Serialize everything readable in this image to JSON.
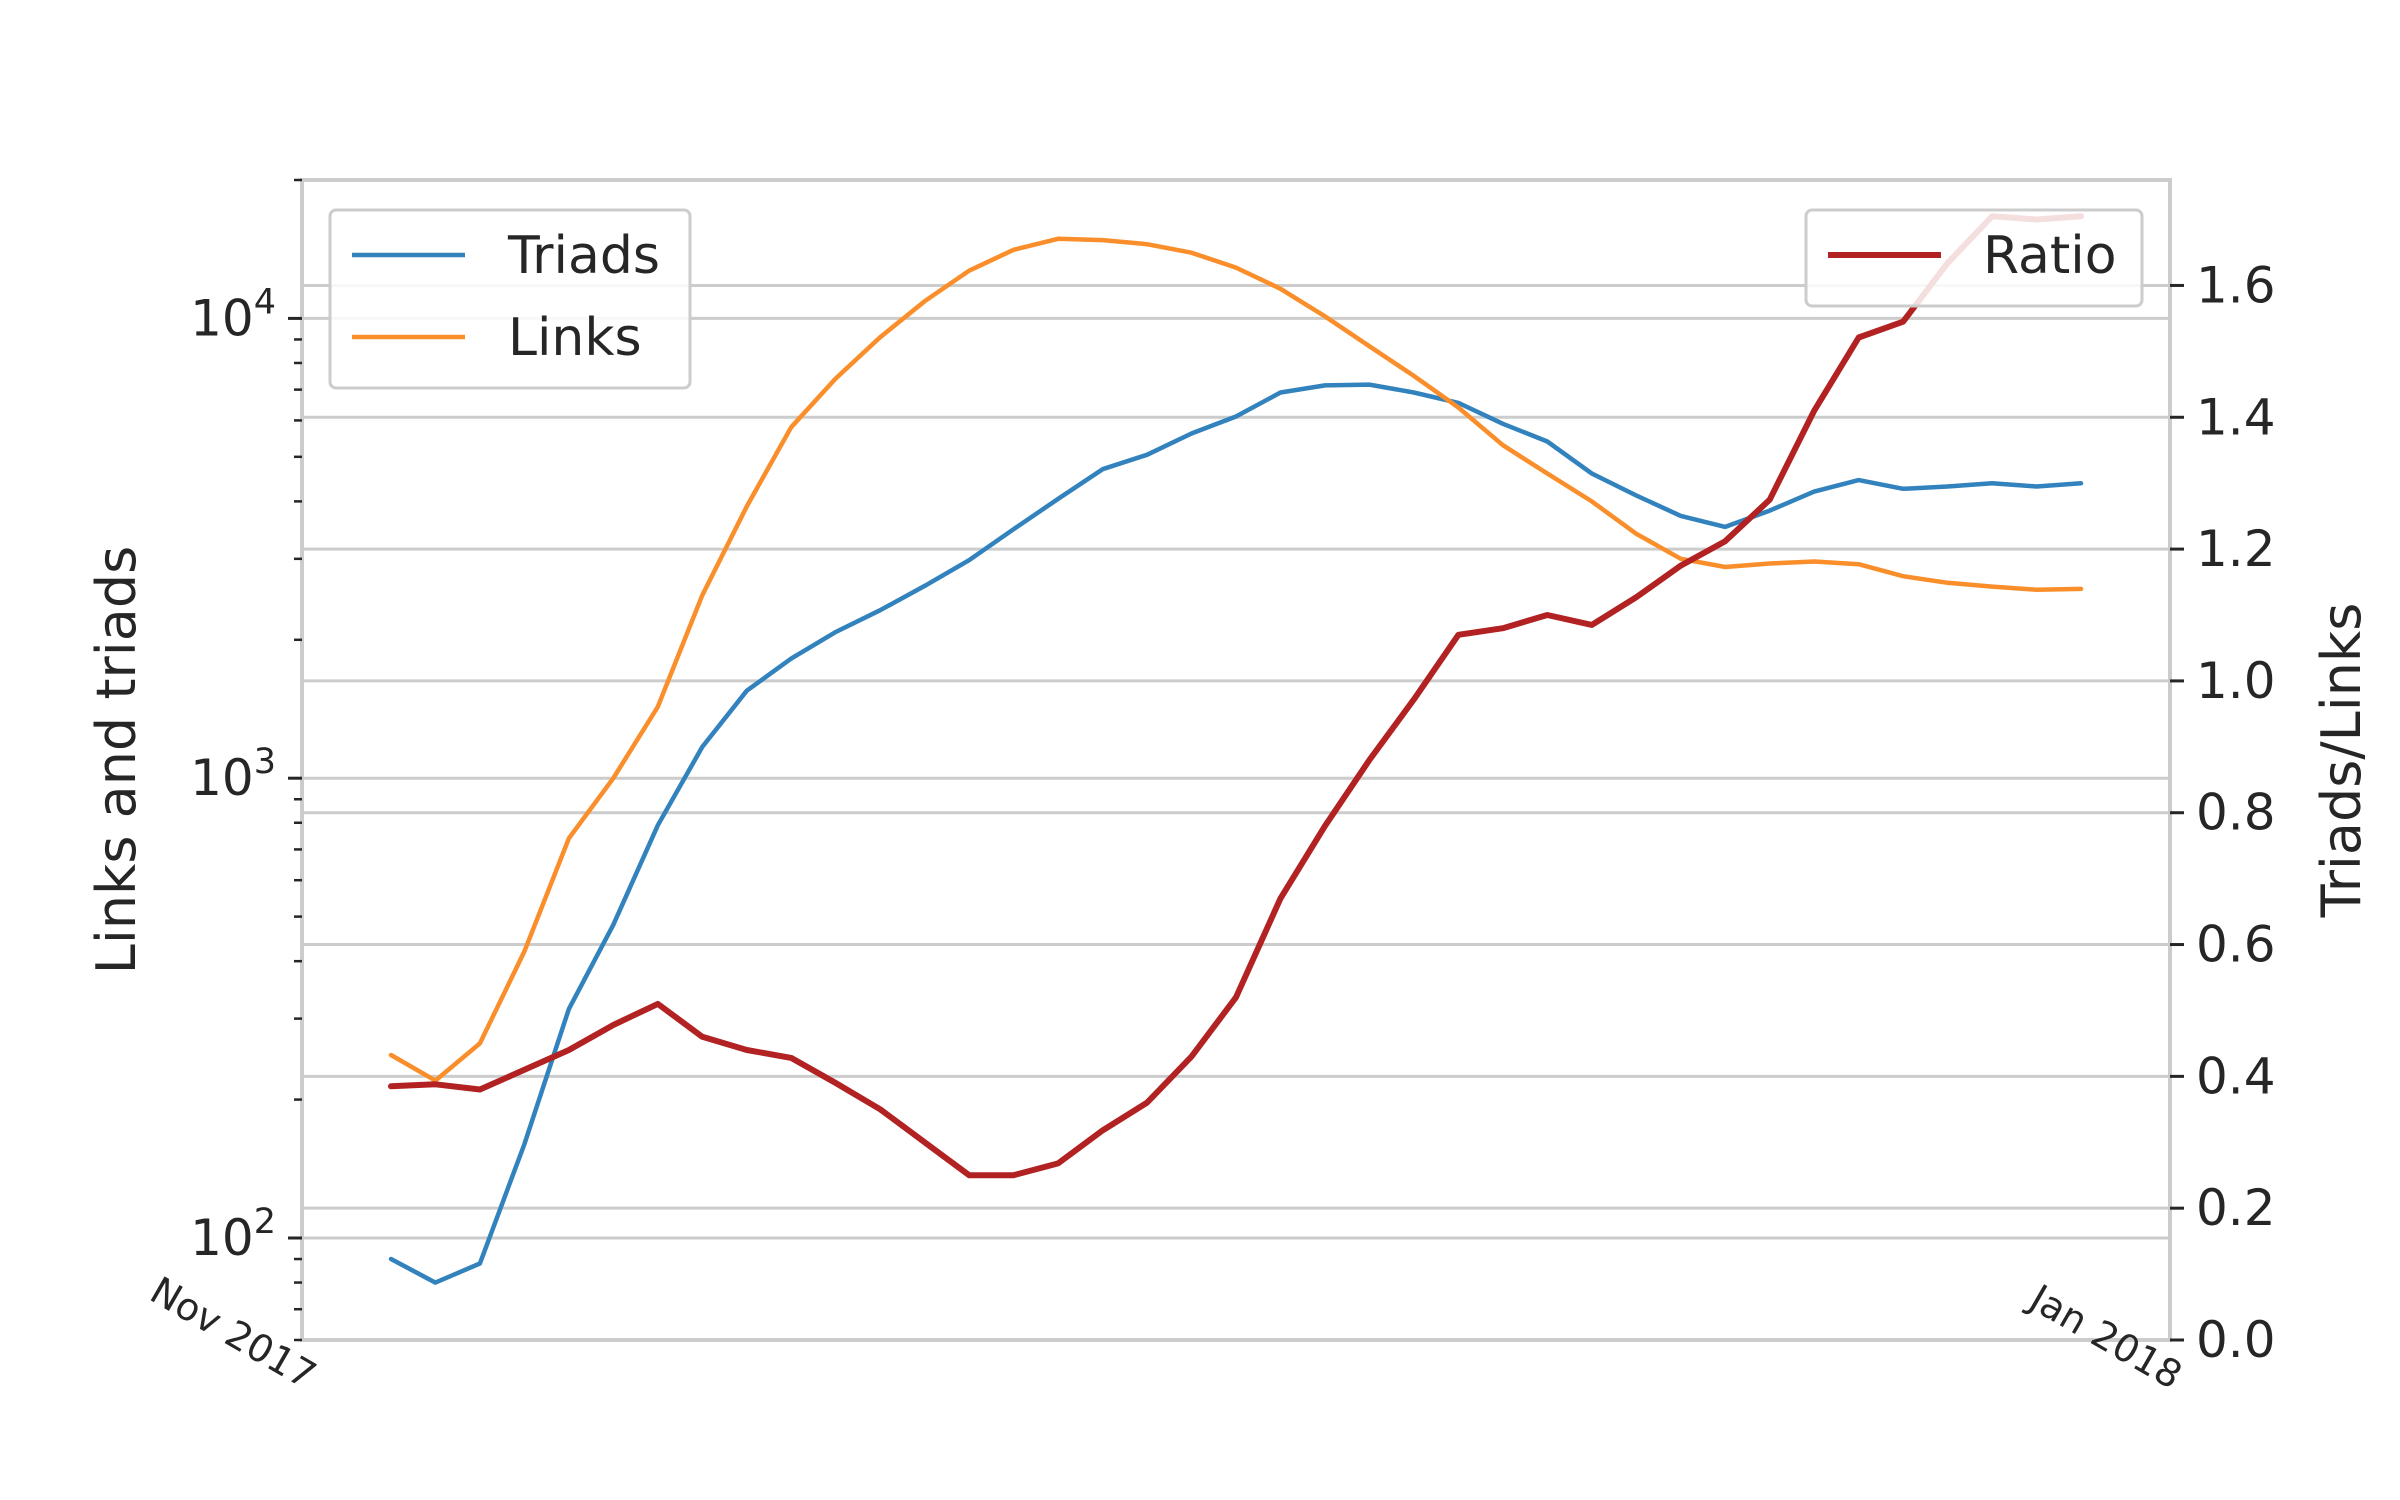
{
  "chart_data": {
    "type": "line",
    "x_tick_labels": [
      "Nov 2017",
      "Jan 2018"
    ],
    "y_left": {
      "label": "Links and triads",
      "scale": "log",
      "range": [
        60,
        20000
      ],
      "tick_labels": [
        {
          "value": 100,
          "base": "10",
          "exp": "2"
        },
        {
          "value": 1000,
          "base": "10",
          "exp": "3"
        },
        {
          "value": 10000,
          "base": "10",
          "exp": "4"
        }
      ]
    },
    "y_right": {
      "label": "Triads/Links",
      "scale": "linear",
      "range": [
        0,
        1.76
      ],
      "ticks": [
        0.0,
        0.2,
        0.4,
        0.6,
        0.8,
        1.0,
        1.2,
        1.4,
        1.6
      ],
      "tick_labels": [
        "0.0",
        "0.2",
        "0.4",
        "0.6",
        "0.8",
        "1.0",
        "1.2",
        "1.4",
        "1.6"
      ]
    },
    "grid": true,
    "legend_left": {
      "placement": "upper-left",
      "entries": [
        "Triads",
        "Links"
      ]
    },
    "legend_right": {
      "placement": "upper-right",
      "entries": [
        "Ratio"
      ]
    },
    "colors": {
      "Triads": "#3282bd",
      "Links": "#f98e2b",
      "Ratio": "#b22222"
    },
    "x_index_range": [
      -2,
      40
    ],
    "series": [
      {
        "name": "Triads",
        "axis": "left",
        "values": [
          90,
          80,
          88,
          160,
          315,
          480,
          790,
          1170,
          1550,
          1820,
          2080,
          2320,
          2620,
          2980,
          3480,
          4050,
          4700,
          5050,
          5620,
          6120,
          6900,
          7150,
          7180,
          6900,
          6550,
          5900,
          5400,
          4600,
          4120,
          3720,
          3520,
          3820,
          4200,
          4450,
          4260,
          4310,
          4380,
          4310,
          4380
        ]
      },
      {
        "name": "Links",
        "axis": "left",
        "values": [
          250,
          220,
          265,
          420,
          740,
          1000,
          1430,
          2500,
          3900,
          5800,
          7400,
          9100,
          10900,
          12700,
          14100,
          14900,
          14800,
          14500,
          13900,
          12900,
          11600,
          10100,
          8700,
          7500,
          6400,
          5300,
          4600,
          4000,
          3400,
          3000,
          2880,
          2930,
          2960,
          2920,
          2750,
          2660,
          2610,
          2570,
          2580
        ]
      },
      {
        "name": "Ratio",
        "axis": "right",
        "values": [
          0.385,
          0.388,
          0.38,
          0.41,
          0.44,
          0.478,
          0.51,
          0.46,
          0.44,
          0.428,
          0.39,
          0.35,
          0.3,
          0.25,
          0.25,
          0.268,
          0.318,
          0.36,
          0.43,
          0.52,
          0.67,
          0.78,
          0.88,
          0.972,
          1.07,
          1.08,
          1.1,
          1.085,
          1.127,
          1.175,
          1.212,
          1.275,
          1.41,
          1.521,
          1.545,
          1.634,
          1.705,
          1.7,
          1.705
        ]
      }
    ]
  }
}
